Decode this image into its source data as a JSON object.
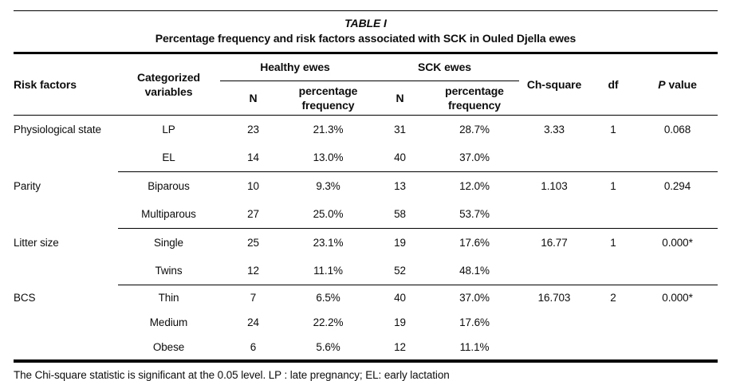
{
  "title": "TABLE I",
  "subtitle": "Percentage frequency and risk factors associated with SCK in Ouled Djella ewes",
  "header": {
    "risk_factors": "Risk factors",
    "categorized_variables": "Categorized variables",
    "healthy_group": "Healthy ewes",
    "sck_group": "SCK ewes",
    "n1": "N",
    "pct_freq1": "percentage frequency",
    "n2": "N",
    "pct_freq2": "percentage frequency",
    "chi_square": "Ch-square",
    "df": "df",
    "p_italic": "P",
    "p_rest": "value"
  },
  "table": {
    "groups": [
      {
        "risk_factor": "Physiological state",
        "rows": [
          {
            "variable": "LP",
            "healthy_n": "23",
            "healthy_pct": "21.3%",
            "sck_n": "31",
            "sck_pct": "28.7%"
          },
          {
            "variable": "EL",
            "healthy_n": "14",
            "healthy_pct": "13.0%",
            "sck_n": "40",
            "sck_pct": "37.0%"
          }
        ],
        "chi_square": "3.33",
        "df": "1",
        "p_value": "0.068"
      },
      {
        "risk_factor": "Parity",
        "rows": [
          {
            "variable": "Biparous",
            "healthy_n": "10",
            "healthy_pct": "9.3%",
            "sck_n": "13",
            "sck_pct": "12.0%"
          },
          {
            "variable": "Multiparous",
            "healthy_n": "27",
            "healthy_pct": "25.0%",
            "sck_n": "58",
            "sck_pct": "53.7%"
          }
        ],
        "chi_square": "1.103",
        "df": "1",
        "p_value": "0.294"
      },
      {
        "risk_factor": "Litter size",
        "rows": [
          {
            "variable": "Single",
            "healthy_n": "25",
            "healthy_pct": "23.1%",
            "sck_n": "19",
            "sck_pct": "17.6%"
          },
          {
            "variable": "Twins",
            "healthy_n": "12",
            "healthy_pct": "11.1%",
            "sck_n": "52",
            "sck_pct": "48.1%"
          }
        ],
        "chi_square": "16.77",
        "df": "1",
        "p_value": "0.000*"
      },
      {
        "risk_factor": "BCS",
        "rows": [
          {
            "variable": "Thin",
            "healthy_n": "7",
            "healthy_pct": "6.5%",
            "sck_n": "40",
            "sck_pct": "37.0%"
          },
          {
            "variable": "Medium",
            "healthy_n": "24",
            "healthy_pct": "22.2%",
            "sck_n": "19",
            "sck_pct": "17.6%"
          },
          {
            "variable": "Obese",
            "healthy_n": "6",
            "healthy_pct": "5.6%",
            "sck_n": "12",
            "sck_pct": "11.1%"
          }
        ],
        "chi_square": "16.703",
        "df": "2",
        "p_value": "0.000*"
      }
    ]
  },
  "footnote": "The Chi-square statistic is significant at the 0.05 level. LP : late pregnancy; EL: early lactation"
}
